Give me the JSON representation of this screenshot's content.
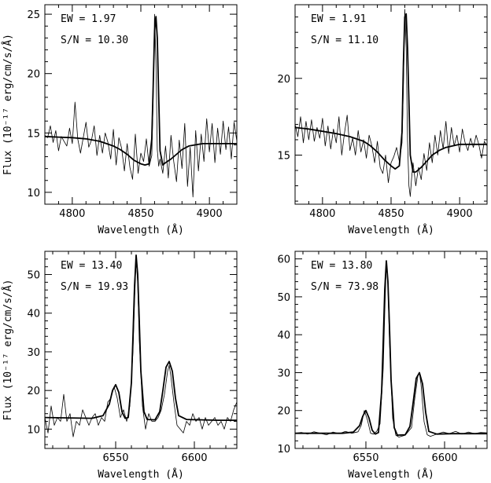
{
  "chart_data": [
    {
      "type": "line",
      "xlabel": "Wavelength (Å)",
      "ylabel": "Flux (10⁻¹⁷ erg/cm/s/Å)",
      "xlim": [
        4780,
        4920
      ],
      "ylim": [
        9,
        25.8
      ],
      "xticks": [
        4800,
        4850,
        4900
      ],
      "yticks": [
        10,
        15,
        20,
        25
      ],
      "annotations": [
        "EW = 1.97",
        "S/N = 10.30"
      ],
      "series": [
        {
          "style": "noisy",
          "x": [
            4780,
            4782,
            4784,
            4786,
            4788,
            4790,
            4792,
            4794,
            4796,
            4798,
            4800,
            4802,
            4804,
            4806,
            4808,
            4810,
            4812,
            4814,
            4816,
            4818,
            4820,
            4822,
            4824,
            4826,
            4828,
            4830,
            4832,
            4834,
            4836,
            4838,
            4840,
            4842,
            4844,
            4846,
            4848,
            4850,
            4852,
            4854,
            4856,
            4858,
            4859,
            4860,
            4861,
            4862,
            4863,
            4864,
            4866,
            4868,
            4870,
            4872,
            4874,
            4876,
            4878,
            4880,
            4882,
            4884,
            4886,
            4888,
            4890,
            4892,
            4894,
            4896,
            4898,
            4900,
            4902,
            4904,
            4906,
            4908,
            4910,
            4912,
            4914,
            4916,
            4918,
            4920
          ],
          "y": [
            14.8,
            14.6,
            15.6,
            14.2,
            15.2,
            13.5,
            14.7,
            14.3,
            13.9,
            15.4,
            14.1,
            17.6,
            14.5,
            13.3,
            14.6,
            15.9,
            13.8,
            14.4,
            15.6,
            13.1,
            14.8,
            13.3,
            15.0,
            14.2,
            12.8,
            15.3,
            12.3,
            14.6,
            13.7,
            11.8,
            14.1,
            12.1,
            11.1,
            14.9,
            11.6,
            13.3,
            12.6,
            14.5,
            12.2,
            13.1,
            18.0,
            25.0,
            21.0,
            13.6,
            12.2,
            12.8,
            11.6,
            13.9,
            11.2,
            14.8,
            12.6,
            10.9,
            14.4,
            12.0,
            15.8,
            10.5,
            13.8,
            9.6,
            15.2,
            11.8,
            14.9,
            12.6,
            16.2,
            13.4,
            15.8,
            12.5,
            15.4,
            13.2,
            16.0,
            13.6,
            15.5,
            12.8,
            15.9,
            14.3
          ]
        },
        {
          "style": "model",
          "x": [
            4780,
            4790,
            4800,
            4810,
            4820,
            4830,
            4835,
            4840,
            4845,
            4850,
            4853,
            4856,
            4858,
            4859,
            4860,
            4861,
            4862,
            4863,
            4864,
            4866,
            4868,
            4872,
            4876,
            4880,
            4885,
            4890,
            4895,
            4900,
            4905,
            4910,
            4920
          ],
          "y": [
            14.7,
            14.65,
            14.6,
            14.5,
            14.3,
            13.9,
            13.6,
            13.2,
            12.7,
            12.4,
            12.3,
            12.4,
            14.5,
            19.0,
            23.5,
            24.8,
            23.0,
            18.0,
            13.5,
            12.3,
            12.5,
            12.8,
            13.2,
            13.6,
            13.9,
            14.0,
            14.1,
            14.1,
            14.1,
            14.1,
            14.1
          ]
        }
      ]
    },
    {
      "type": "line",
      "xlabel": "Wavelength (Å)",
      "ylabel": "",
      "xlim": [
        4780,
        4920
      ],
      "ylim": [
        11.8,
        24.8
      ],
      "xticks": [
        4800,
        4850,
        4900
      ],
      "yticks": [
        15,
        20
      ],
      "annotations": [
        "EW = 1.91",
        "S/N = 11.10"
      ],
      "series": [
        {
          "style": "noisy",
          "x": [
            4780,
            4782,
            4784,
            4786,
            4788,
            4790,
            4792,
            4794,
            4796,
            4798,
            4800,
            4802,
            4804,
            4806,
            4808,
            4810,
            4812,
            4814,
            4816,
            4818,
            4820,
            4822,
            4824,
            4826,
            4828,
            4830,
            4832,
            4834,
            4836,
            4838,
            4840,
            4842,
            4844,
            4846,
            4848,
            4850,
            4852,
            4854,
            4856,
            4858,
            4859,
            4860,
            4861,
            4862,
            4863,
            4864,
            4865,
            4866,
            4868,
            4870,
            4872,
            4874,
            4876,
            4878,
            4880,
            4882,
            4884,
            4886,
            4888,
            4890,
            4892,
            4894,
            4896,
            4898,
            4900,
            4902,
            4904,
            4906,
            4908,
            4910,
            4912,
            4914,
            4916,
            4918,
            4920
          ],
          "y": [
            17.0,
            16.2,
            17.5,
            15.8,
            17.2,
            16.0,
            17.3,
            15.9,
            16.8,
            16.1,
            17.4,
            15.6,
            16.9,
            15.4,
            16.7,
            15.8,
            17.5,
            15.0,
            16.4,
            17.6,
            15.3,
            16.1,
            15.0,
            16.6,
            15.2,
            16.0,
            14.8,
            16.3,
            15.6,
            14.5,
            15.9,
            14.2,
            13.8,
            15.0,
            13.2,
            14.5,
            14.9,
            15.5,
            14.6,
            15.8,
            19.5,
            24.5,
            22.0,
            16.0,
            13.0,
            12.3,
            13.5,
            14.5,
            13.0,
            14.2,
            13.4,
            15.1,
            14.0,
            15.8,
            14.5,
            16.3,
            15.0,
            16.6,
            15.4,
            17.2,
            15.1,
            16.8,
            15.6,
            16.3,
            15.2,
            16.7,
            15.8,
            15.3,
            16.1,
            15.5,
            16.3,
            15.7,
            14.8,
            15.9,
            15.6
          ]
        },
        {
          "style": "model",
          "x": [
            4780,
            4790,
            4800,
            4810,
            4820,
            4830,
            4835,
            4840,
            4845,
            4850,
            4853,
            4856,
            4858,
            4859,
            4860,
            4861,
            4862,
            4863,
            4864,
            4866,
            4868,
            4872,
            4876,
            4880,
            4885,
            4890,
            4895,
            4900,
            4905,
            4910,
            4920
          ],
          "y": [
            16.8,
            16.7,
            16.55,
            16.4,
            16.2,
            15.9,
            15.6,
            15.2,
            14.7,
            14.3,
            14.1,
            14.3,
            16.5,
            21.0,
            24.0,
            24.2,
            22.0,
            18.5,
            15.0,
            13.9,
            13.9,
            14.2,
            14.6,
            15.0,
            15.3,
            15.5,
            15.6,
            15.7,
            15.7,
            15.7,
            15.7
          ]
        }
      ]
    },
    {
      "type": "line",
      "xlabel": "Wavelength (Å)",
      "ylabel": "Flux (10⁻¹⁷ erg/cm/s/Å)",
      "xlim": [
        6505,
        6627
      ],
      "ylim": [
        5,
        56
      ],
      "xticks": [
        6550,
        6600
      ],
      "yticks": [
        10,
        20,
        30,
        40,
        50
      ],
      "annotations": [
        "EW = 13.40",
        "S/N = 19.93"
      ],
      "series": [
        {
          "style": "noisy",
          "x": [
            6505,
            6507,
            6509,
            6511,
            6513,
            6515,
            6517,
            6519,
            6521,
            6523,
            6525,
            6527,
            6529,
            6531,
            6533,
            6535,
            6537,
            6539,
            6541,
            6543,
            6545,
            6547,
            6549,
            6551,
            6553,
            6555,
            6557,
            6559,
            6561,
            6562,
            6563,
            6564,
            6565,
            6567,
            6569,
            6571,
            6573,
            6575,
            6577,
            6579,
            6581,
            6583,
            6584,
            6585,
            6587,
            6589,
            6591,
            6593,
            6595,
            6597,
            6599,
            6601,
            6603,
            6605,
            6607,
            6609,
            6611,
            6613,
            6615,
            6617,
            6619,
            6621,
            6623,
            6625,
            6627
          ],
          "y": [
            13,
            9,
            16,
            11,
            13,
            12,
            19,
            12,
            14,
            8,
            12,
            11,
            15,
            13,
            11,
            13,
            14,
            11,
            13,
            12,
            17,
            18,
            21,
            18,
            13,
            15,
            12,
            16,
            30,
            43,
            54,
            48,
            33,
            16,
            10,
            14,
            12,
            12,
            13,
            15,
            19,
            25,
            26.5,
            24,
            17,
            11,
            10,
            9,
            12,
            11,
            14,
            12,
            13,
            10,
            13,
            11,
            12,
            13,
            11,
            12,
            10,
            13,
            12,
            15,
            17
          ]
        },
        {
          "style": "model",
          "x": [
            6505,
            6520,
            6535,
            6542,
            6546,
            6548,
            6550,
            6552,
            6554,
            6556,
            6558,
            6560,
            6561,
            6562,
            6563,
            6564,
            6565,
            6566,
            6568,
            6570,
            6575,
            6578,
            6580,
            6582,
            6584,
            6586,
            6588,
            6590,
            6595,
            6605,
            6615,
            6627
          ],
          "y": [
            13.0,
            12.9,
            12.8,
            13.5,
            16.5,
            20.0,
            21.5,
            19.5,
            14.5,
            12.8,
            13.0,
            22.0,
            34.0,
            47.0,
            55.0,
            50.0,
            38.0,
            25.0,
            14.5,
            12.5,
            12.4,
            14.5,
            20.0,
            26.0,
            27.5,
            25.0,
            18.0,
            13.5,
            12.5,
            12.4,
            12.3,
            12.3
          ]
        }
      ]
    },
    {
      "type": "line",
      "xlabel": "Wavelength (Å)",
      "ylabel": "",
      "xlim": [
        6505,
        6627
      ],
      "ylim": [
        10,
        62
      ],
      "xticks": [
        6550,
        6600
      ],
      "yticks": [
        10,
        20,
        30,
        40,
        50,
        60
      ],
      "annotations": [
        "EW = 13.80",
        "S/N = 73.98"
      ],
      "series": [
        {
          "style": "noisy",
          "x": [
            6505,
            6509,
            6513,
            6517,
            6521,
            6525,
            6529,
            6533,
            6537,
            6541,
            6545,
            6547,
            6549,
            6551,
            6553,
            6555,
            6557,
            6559,
            6561,
            6562,
            6563,
            6564,
            6565,
            6567,
            6569,
            6571,
            6575,
            6579,
            6581,
            6583,
            6584,
            6585,
            6587,
            6589,
            6591,
            6595,
            6599,
            6603,
            6607,
            6611,
            6615,
            6619,
            6623,
            6627
          ],
          "y": [
            14,
            14.2,
            13.8,
            14.4,
            14.0,
            13.6,
            14.3,
            13.9,
            14.5,
            14.0,
            14.4,
            16.0,
            20.0,
            17.5,
            14.0,
            13.8,
            14.6,
            16.5,
            31,
            46,
            59,
            53,
            38,
            18,
            13.5,
            13.0,
            13.5,
            15.5,
            23,
            29,
            30,
            27,
            17,
            13.6,
            13.2,
            13.8,
            14.3,
            13.9,
            14.5,
            13.8,
            14.3,
            13.9,
            14.2,
            14.1
          ]
        },
        {
          "style": "model",
          "x": [
            6505,
            6520,
            6535,
            6542,
            6546,
            6548,
            6550,
            6552,
            6554,
            6556,
            6558,
            6560,
            6561,
            6562,
            6563,
            6564,
            6565,
            6566,
            6568,
            6570,
            6575,
            6578,
            6580,
            6582,
            6584,
            6586,
            6588,
            6590,
            6595,
            6605,
            6615,
            6627
          ],
          "y": [
            14.0,
            14.0,
            14.0,
            14.3,
            16.0,
            18.5,
            20.0,
            18.0,
            14.8,
            13.8,
            14.2,
            25.0,
            38.0,
            52.0,
            59.5,
            54.0,
            42.0,
            28.0,
            15.5,
            13.5,
            13.6,
            15.8,
            22.0,
            28.5,
            30.0,
            27.0,
            19.5,
            14.5,
            13.8,
            13.9,
            13.9,
            13.9
          ]
        }
      ]
    }
  ]
}
